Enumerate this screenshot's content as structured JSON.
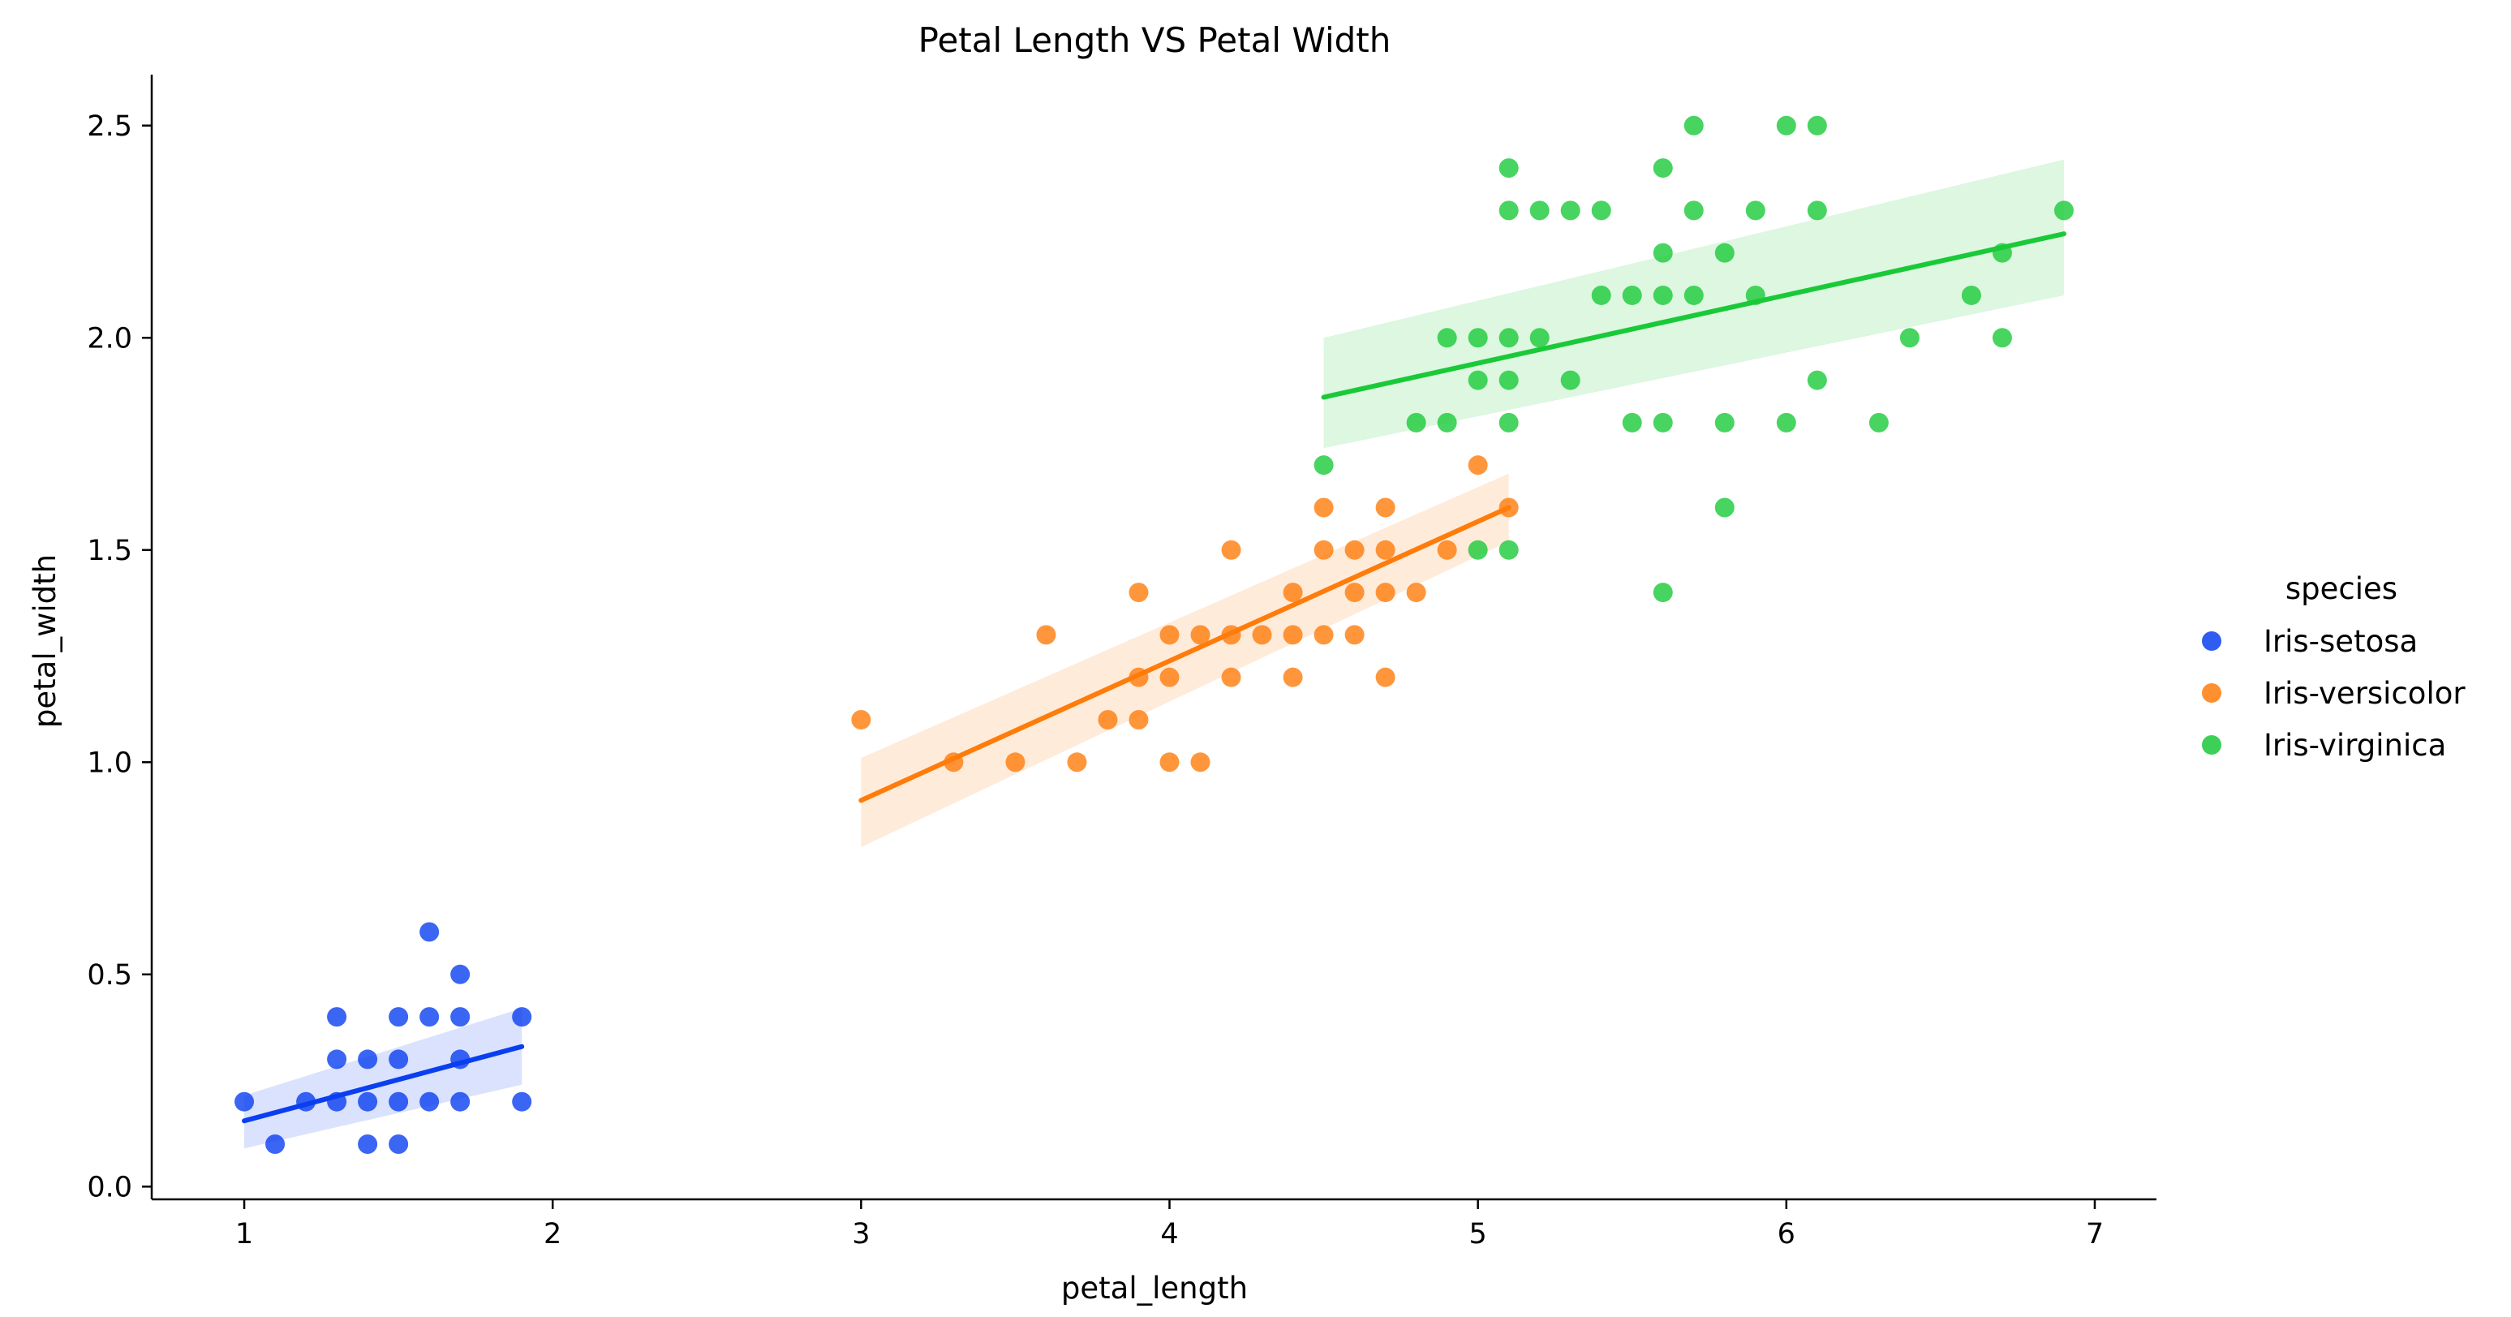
{
  "chart_data": {
    "type": "scatter",
    "title": "Petal Length VS Petal Width",
    "xlabel": "petal_length",
    "ylabel": "petal_width",
    "xlim": [
      0.7,
      7.2
    ],
    "ylim": [
      -0.03,
      2.62
    ],
    "xticks": [
      1,
      2,
      3,
      4,
      5,
      6,
      7
    ],
    "xtick_labels": [
      "1",
      "2",
      "3",
      "4",
      "5",
      "6",
      "7"
    ],
    "yticks": [
      0.0,
      0.5,
      1.0,
      1.5,
      2.0,
      2.5
    ],
    "ytick_labels": [
      "0.0",
      "0.5",
      "1.0",
      "1.5",
      "2.0",
      "2.5"
    ],
    "grid": false,
    "legend": {
      "title": "species",
      "position": "right-outside"
    },
    "series": [
      {
        "name": "Iris-setosa",
        "color": "#0a3ff0",
        "regression": {
          "x": [
            1.0,
            1.9
          ],
          "y": [
            0.155,
            0.33
          ],
          "ci_low": [
            0.09,
            0.24
          ],
          "ci_high": [
            0.215,
            0.42
          ]
        },
        "points": [
          [
            1.0,
            0.2
          ],
          [
            1.1,
            0.1
          ],
          [
            1.2,
            0.2
          ],
          [
            1.3,
            0.2
          ],
          [
            1.3,
            0.3
          ],
          [
            1.3,
            0.4
          ],
          [
            1.4,
            0.1
          ],
          [
            1.4,
            0.2
          ],
          [
            1.4,
            0.3
          ],
          [
            1.5,
            0.1
          ],
          [
            1.5,
            0.2
          ],
          [
            1.5,
            0.3
          ],
          [
            1.5,
            0.4
          ],
          [
            1.6,
            0.2
          ],
          [
            1.6,
            0.4
          ],
          [
            1.6,
            0.6
          ],
          [
            1.7,
            0.2
          ],
          [
            1.7,
            0.3
          ],
          [
            1.7,
            0.4
          ],
          [
            1.7,
            0.5
          ],
          [
            1.9,
            0.2
          ],
          [
            1.9,
            0.4
          ]
        ]
      },
      {
        "name": "Iris-versicolor",
        "color": "#ff7c0a",
        "regression": {
          "x": [
            3.0,
            5.1
          ],
          "y": [
            0.91,
            1.6
          ],
          "ci_low": [
            0.8,
            1.52
          ],
          "ci_high": [
            1.01,
            1.68
          ]
        },
        "points": [
          [
            3.0,
            1.1
          ],
          [
            3.3,
            1.0
          ],
          [
            3.5,
            1.0
          ],
          [
            3.6,
            1.3
          ],
          [
            3.7,
            1.0
          ],
          [
            3.8,
            1.1
          ],
          [
            3.9,
            1.1
          ],
          [
            3.9,
            1.2
          ],
          [
            3.9,
            1.4
          ],
          [
            4.0,
            1.0
          ],
          [
            4.0,
            1.2
          ],
          [
            4.0,
            1.3
          ],
          [
            4.1,
            1.0
          ],
          [
            4.1,
            1.3
          ],
          [
            4.2,
            1.2
          ],
          [
            4.2,
            1.3
          ],
          [
            4.2,
            1.5
          ],
          [
            4.3,
            1.3
          ],
          [
            4.4,
            1.2
          ],
          [
            4.4,
            1.3
          ],
          [
            4.4,
            1.4
          ],
          [
            4.5,
            1.3
          ],
          [
            4.5,
            1.5
          ],
          [
            4.5,
            1.6
          ],
          [
            4.6,
            1.3
          ],
          [
            4.6,
            1.4
          ],
          [
            4.6,
            1.5
          ],
          [
            4.7,
            1.2
          ],
          [
            4.7,
            1.4
          ],
          [
            4.7,
            1.5
          ],
          [
            4.7,
            1.6
          ],
          [
            4.8,
            1.4
          ],
          [
            4.9,
            1.5
          ],
          [
            5.0,
            1.7
          ],
          [
            5.1,
            1.6
          ]
        ]
      },
      {
        "name": "Iris-virginica",
        "color": "#1ac938",
        "regression": {
          "x": [
            4.5,
            6.9
          ],
          "y": [
            1.86,
            2.245
          ],
          "ci_low": [
            1.74,
            2.1
          ],
          "ci_high": [
            2.0,
            2.42
          ]
        },
        "points": [
          [
            4.5,
            1.7
          ],
          [
            4.8,
            1.8
          ],
          [
            4.9,
            1.8
          ],
          [
            4.9,
            2.0
          ],
          [
            5.0,
            1.5
          ],
          [
            5.0,
            1.9
          ],
          [
            5.0,
            2.0
          ],
          [
            5.1,
            1.5
          ],
          [
            5.1,
            1.8
          ],
          [
            5.1,
            1.9
          ],
          [
            5.1,
            2.0
          ],
          [
            5.1,
            2.3
          ],
          [
            5.1,
            2.4
          ],
          [
            5.2,
            2.0
          ],
          [
            5.2,
            2.3
          ],
          [
            5.3,
            1.9
          ],
          [
            5.3,
            2.3
          ],
          [
            5.4,
            2.1
          ],
          [
            5.4,
            2.3
          ],
          [
            5.5,
            1.8
          ],
          [
            5.5,
            2.1
          ],
          [
            5.6,
            1.4
          ],
          [
            5.6,
            1.8
          ],
          [
            5.6,
            2.1
          ],
          [
            5.6,
            2.2
          ],
          [
            5.6,
            2.4
          ],
          [
            5.7,
            2.1
          ],
          [
            5.7,
            2.3
          ],
          [
            5.7,
            2.5
          ],
          [
            5.8,
            1.6
          ],
          [
            5.8,
            1.8
          ],
          [
            5.8,
            2.2
          ],
          [
            5.9,
            2.1
          ],
          [
            5.9,
            2.3
          ],
          [
            6.0,
            1.8
          ],
          [
            6.0,
            2.5
          ],
          [
            6.1,
            1.9
          ],
          [
            6.1,
            2.3
          ],
          [
            6.1,
            2.5
          ],
          [
            6.3,
            1.8
          ],
          [
            6.4,
            2.0
          ],
          [
            6.6,
            2.1
          ],
          [
            6.7,
            2.0
          ],
          [
            6.7,
            2.2
          ],
          [
            6.9,
            2.3
          ]
        ]
      }
    ]
  }
}
